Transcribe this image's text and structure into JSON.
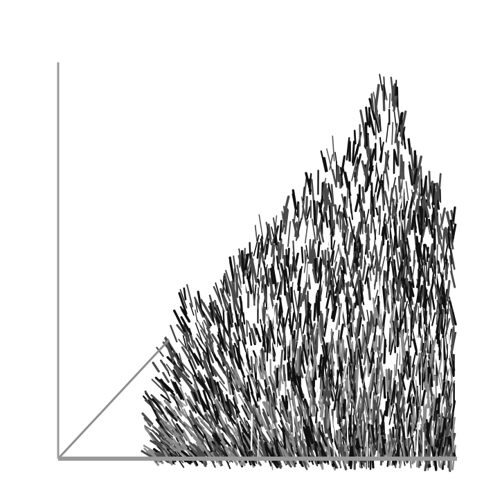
{
  "chart_data": {
    "type": "scatter",
    "title": "",
    "xlabel": "",
    "ylabel": "",
    "x_ticks": [],
    "y_ticks": [],
    "xlim": [
      0,
      1
    ],
    "ylim": [
      0,
      1
    ],
    "grid": false,
    "legend": "none",
    "colors": {
      "axis": "#9a9a9a",
      "diagonal": "#8e8e8e",
      "mark_dark": "#111111",
      "mark_mid": "#4a4a4a",
      "mark_light": "#8a8a8a"
    },
    "reference_line": {
      "type": "diagonal",
      "from": [
        0,
        0
      ],
      "to": [
        0.28,
        0.3
      ]
    },
    "envelope": {
      "x": [
        0.0,
        0.1,
        0.2,
        0.28,
        0.32,
        0.38,
        0.45,
        0.52,
        0.6,
        0.68,
        0.74,
        0.78,
        0.82,
        0.86,
        0.89,
        0.92,
        0.95,
        0.98,
        1.0
      ],
      "y": [
        0.0,
        0.1,
        0.21,
        0.3,
        0.42,
        0.38,
        0.5,
        0.6,
        0.66,
        0.78,
        0.8,
        0.88,
        0.98,
        0.93,
        0.78,
        0.74,
        0.7,
        0.68,
        0.62
      ]
    },
    "point_count": 2600,
    "seed": 7
  }
}
